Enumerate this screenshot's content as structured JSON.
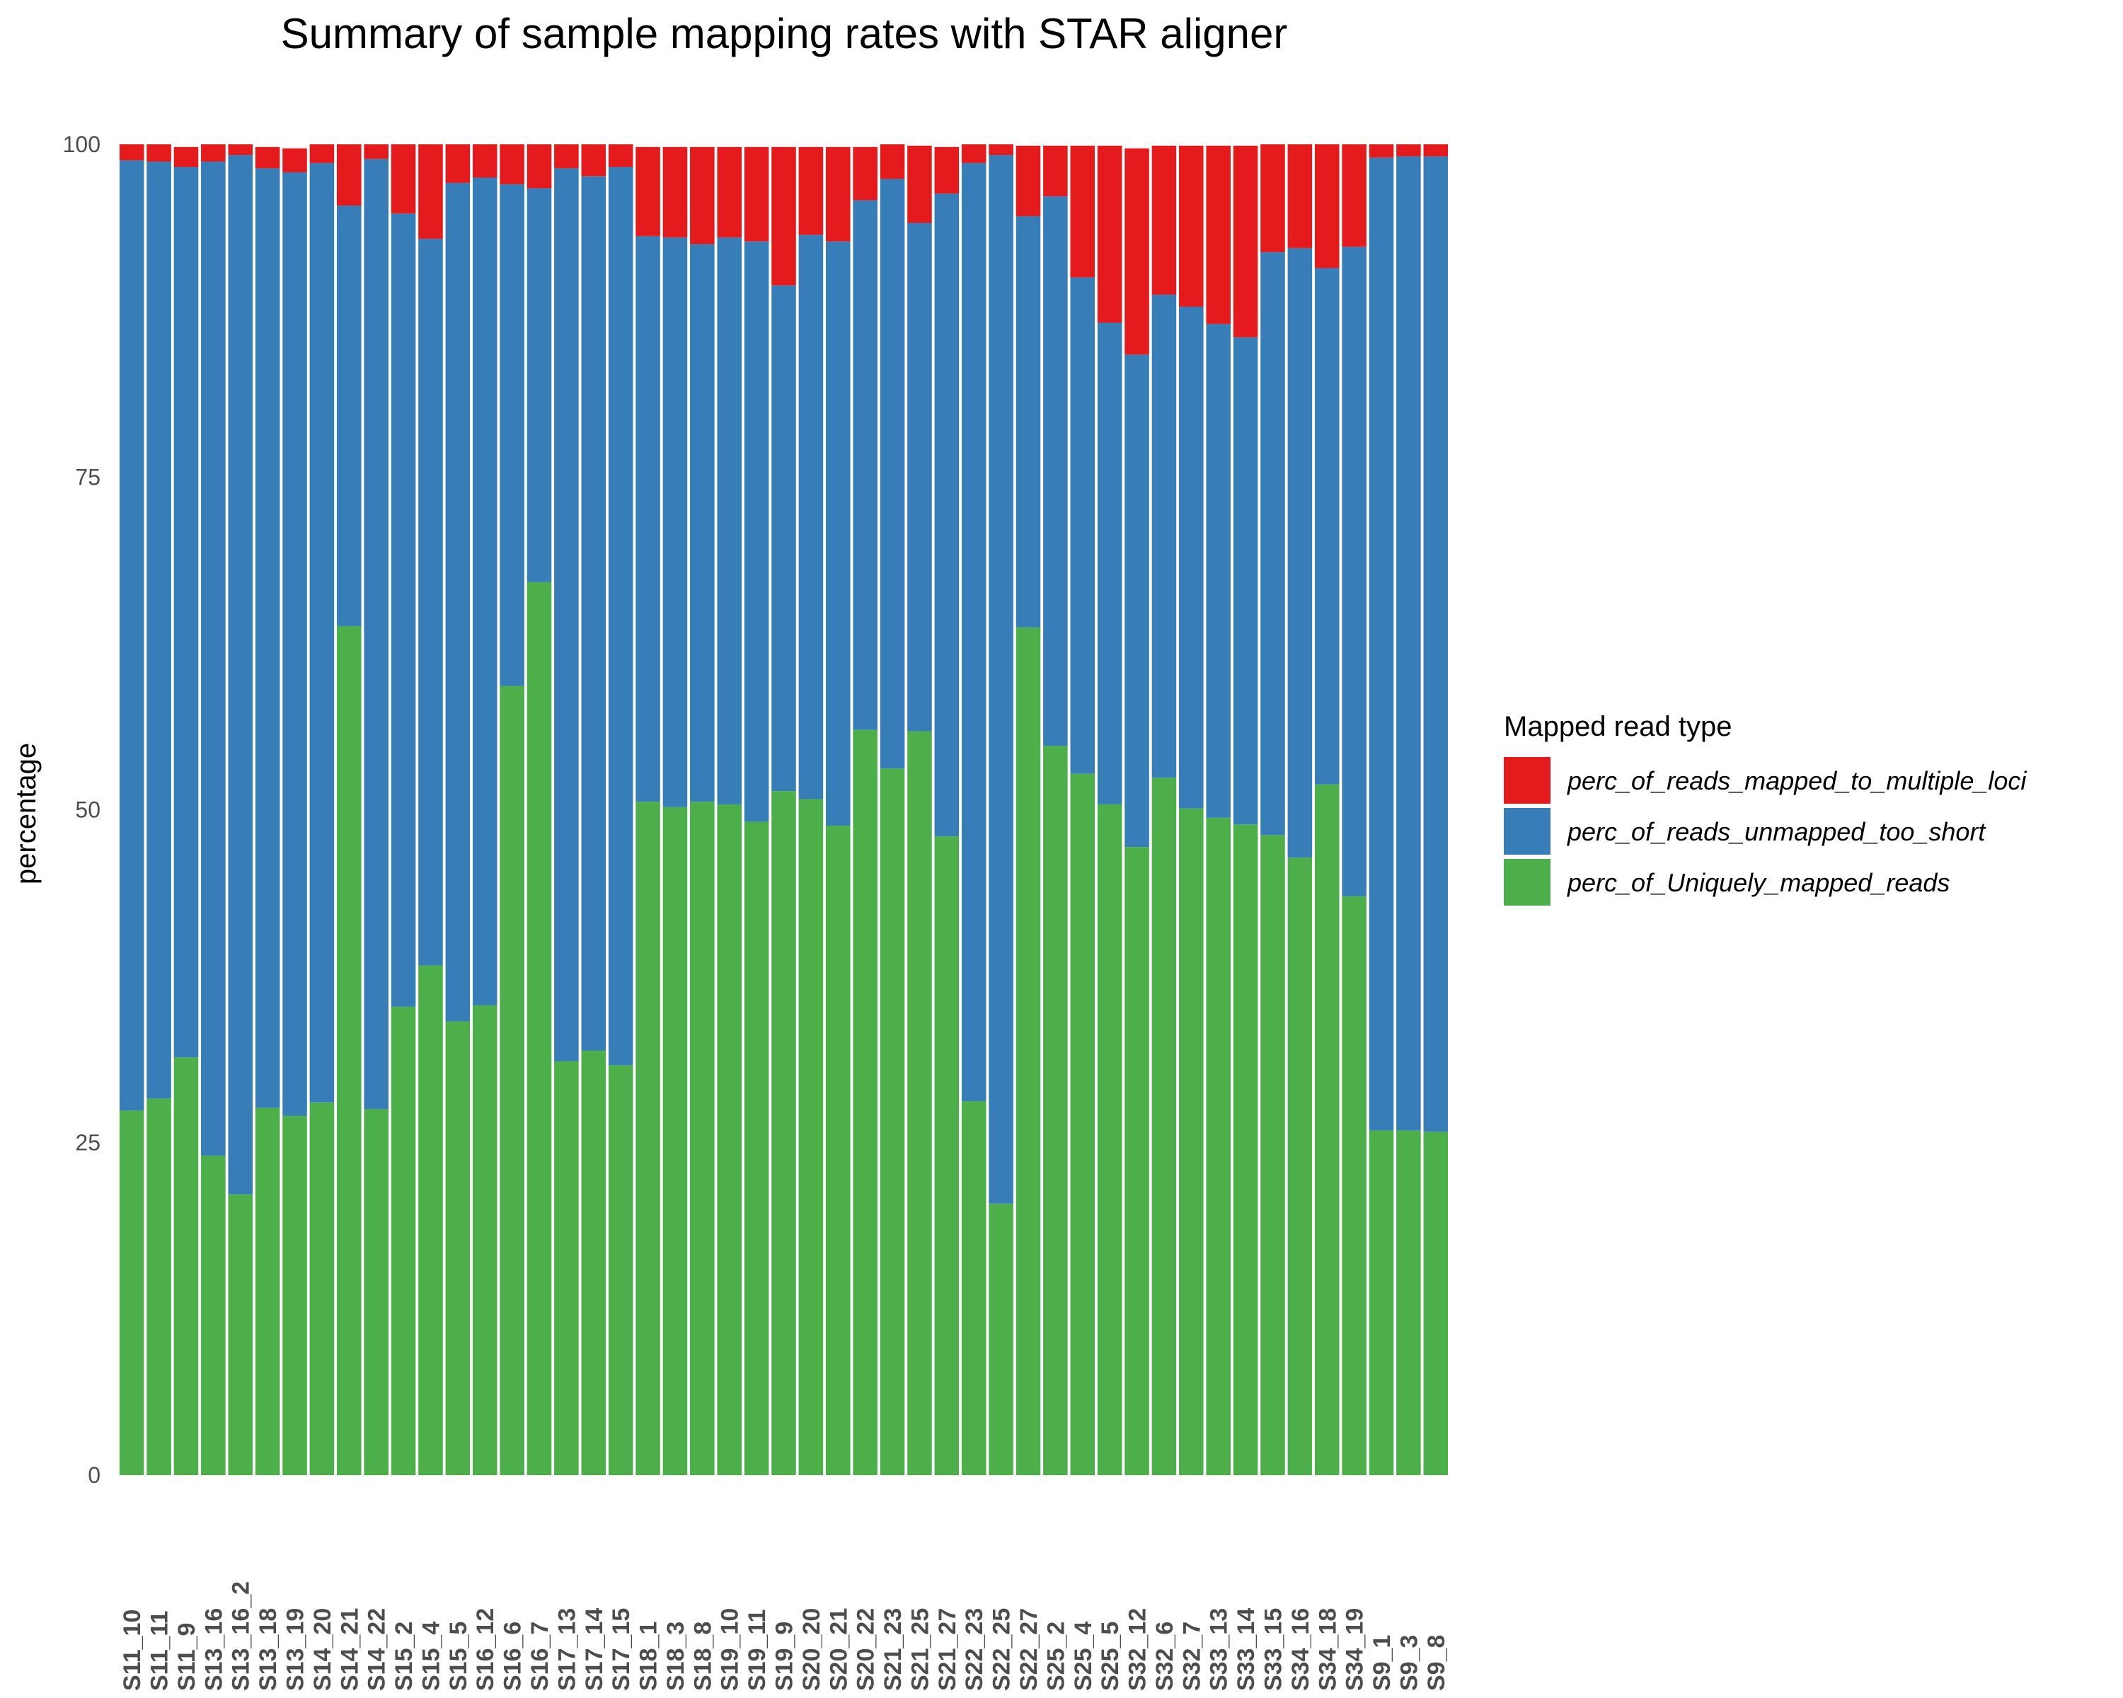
{
  "chart_data": {
    "type": "bar",
    "stacked": true,
    "title": "Summary of sample mapping rates with STAR aligner",
    "xlabel": "",
    "ylabel": "percentage",
    "ylim": [
      0,
      100
    ],
    "yticks": [
      0,
      25,
      50,
      75,
      100
    ],
    "grid": false,
    "legend_position": "right",
    "legend_title": "Mapped read type",
    "categories": [
      "S11_10",
      "S11_11",
      "S11_9",
      "S13_16",
      "S13_16_2",
      "S13_18",
      "S13_19",
      "S14_20",
      "S14_21",
      "S14_22",
      "S15_2",
      "S15_4",
      "S15_5",
      "S16_12",
      "S16_6",
      "S16_7",
      "S17_13",
      "S17_14",
      "S17_15",
      "S18_1",
      "S18_3",
      "S18_8",
      "S19_10",
      "S19_11",
      "S19_9",
      "S20_20",
      "S20_21",
      "S20_22",
      "S21_23",
      "S21_25",
      "S21_27",
      "S22_23",
      "S22_25",
      "S22_27",
      "S25_2",
      "S25_4",
      "S25_5",
      "S32_12",
      "S32_6",
      "S32_7",
      "S33_13",
      "S33_14",
      "S33_15",
      "S34_16",
      "S34_18",
      "S34_19",
      "S9_1",
      "S9_3",
      "S9_8"
    ],
    "series": [
      {
        "name": "perc_of_Uniquely_mapped_reads",
        "color": "#4daf4a",
        "values": [
          27.4,
          28.3,
          31.4,
          24.0,
          21.1,
          27.6,
          27.0,
          28.0,
          63.8,
          27.5,
          35.2,
          38.3,
          34.1,
          35.3,
          59.3,
          67.1,
          31.1,
          31.9,
          30.8,
          50.6,
          50.2,
          50.6,
          50.4,
          49.1,
          51.4,
          50.8,
          48.8,
          56.0,
          53.1,
          55.9,
          48.0,
          28.1,
          20.4,
          63.7,
          54.8,
          52.7,
          50.4,
          47.2,
          52.4,
          50.1,
          49.4,
          48.9,
          48.1,
          46.4,
          51.9,
          43.5,
          25.9,
          25.9,
          25.8
        ]
      },
      {
        "name": "perc_of_reads_unmapped_too_short",
        "color": "#377eb8",
        "values": [
          71.4,
          70.4,
          66.9,
          74.7,
          78.1,
          70.6,
          70.9,
          70.6,
          31.6,
          71.4,
          59.6,
          54.6,
          63.0,
          62.2,
          37.7,
          29.6,
          67.1,
          65.7,
          67.5,
          42.5,
          42.8,
          41.9,
          42.6,
          43.6,
          38.0,
          42.4,
          43.9,
          39.8,
          44.3,
          38.2,
          48.3,
          70.5,
          78.8,
          30.9,
          41.3,
          37.3,
          36.2,
          37.0,
          36.3,
          37.7,
          37.1,
          36.6,
          43.8,
          45.8,
          38.8,
          48.8,
          73.1,
          73.2,
          73.3
        ]
      },
      {
        "name": "perc_of_reads_mapped_to_multiple_loci",
        "color": "#e41a1c",
        "values": [
          1.2,
          1.3,
          1.5,
          1.3,
          0.8,
          1.6,
          1.8,
          1.4,
          4.6,
          1.1,
          5.2,
          7.1,
          2.9,
          2.5,
          3.0,
          3.3,
          1.8,
          2.4,
          1.7,
          6.7,
          6.8,
          7.3,
          6.8,
          7.1,
          10.4,
          6.6,
          7.1,
          4.0,
          2.6,
          5.8,
          3.5,
          1.4,
          0.8,
          5.3,
          3.8,
          9.9,
          13.3,
          15.5,
          11.2,
          12.1,
          13.4,
          14.4,
          8.1,
          7.8,
          9.3,
          7.7,
          1.0,
          0.9,
          0.9
        ]
      }
    ],
    "legend_order": [
      "perc_of_reads_mapped_to_multiple_loci",
      "perc_of_reads_unmapped_too_short",
      "perc_of_Uniquely_mapped_reads"
    ]
  }
}
